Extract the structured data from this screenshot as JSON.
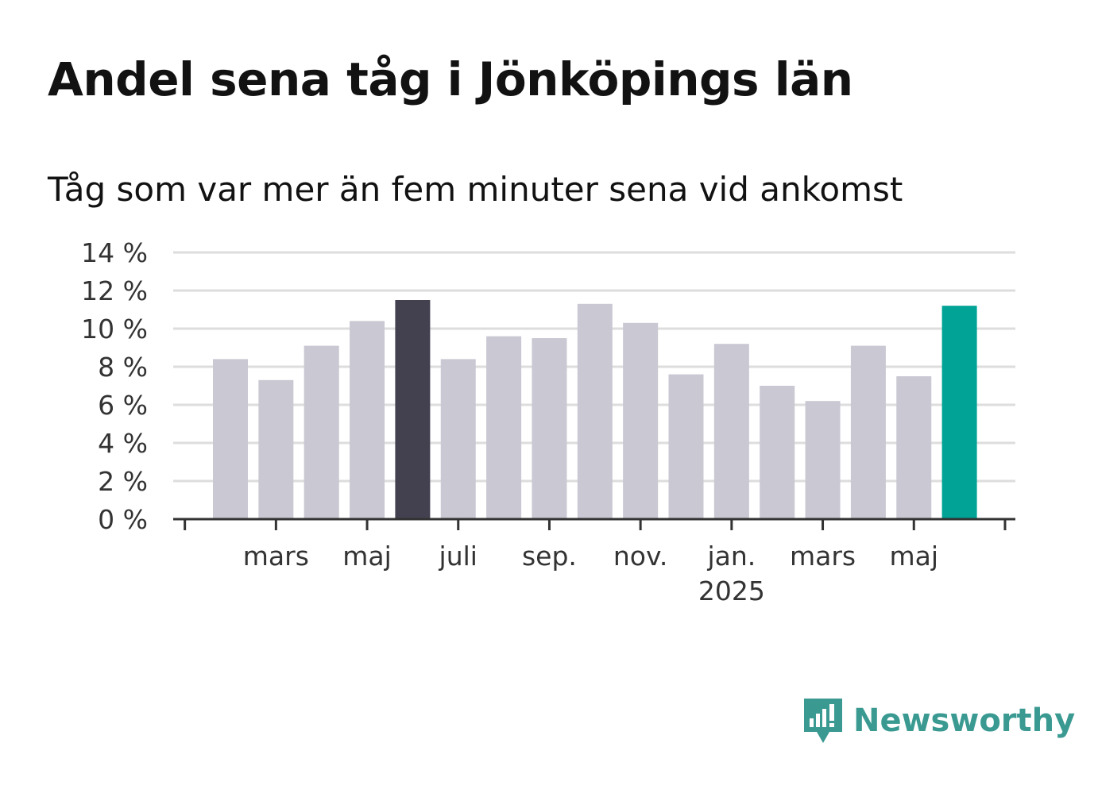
{
  "title": "Andel sena tåg i Jönköpings län",
  "subtitle": "Tåg som var mer än fem minuter sena vid ankomst",
  "brand": {
    "name": "Newsworthy",
    "color": "#3a9a92",
    "icon": "newsworthy-logo-icon"
  },
  "colors": {
    "bar": "#c9c8d3",
    "highlight": "#43414f",
    "latest": "#00a396",
    "grid": "#dddddd",
    "axis": "#333333"
  },
  "chart_data": {
    "type": "bar",
    "title": "Andel sena tåg i Jönköpings län",
    "subtitle": "Tåg som var mer än fem minuter sena vid ankomst",
    "xlabel": "",
    "ylabel": "",
    "ylim": [
      0,
      14
    ],
    "y_ticks": [
      "0 %",
      "2 %",
      "4 %",
      "6 %",
      "8 %",
      "10 %",
      "12 %",
      "14 %"
    ],
    "x_tick_labels": [
      {
        "bar": 1,
        "label": "mars"
      },
      {
        "bar": 3,
        "label": "maj"
      },
      {
        "bar": 5,
        "label": "juli"
      },
      {
        "bar": 7,
        "label": "sep."
      },
      {
        "bar": 9,
        "label": "nov."
      },
      {
        "bar": 11,
        "label": "jan.",
        "sublabel": "2025"
      },
      {
        "bar": 13,
        "label": "mars"
      },
      {
        "bar": 15,
        "label": "maj"
      }
    ],
    "values": [
      8.4,
      7.3,
      9.1,
      10.4,
      11.5,
      8.4,
      9.6,
      9.5,
      11.3,
      10.3,
      7.6,
      9.2,
      7.0,
      6.2,
      9.1,
      7.5,
      11.2
    ],
    "highlight_index": 4,
    "latest_index": 16,
    "grid": true,
    "legend": "none"
  }
}
